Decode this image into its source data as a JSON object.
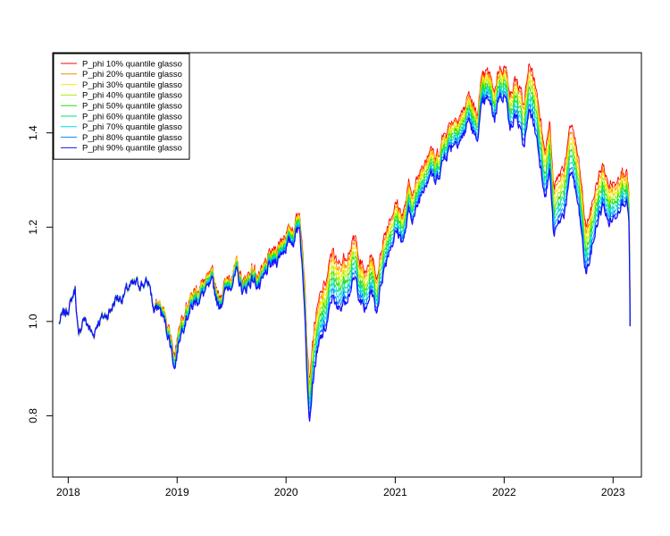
{
  "chart_data": {
    "type": "line",
    "title": "",
    "xlabel": "",
    "ylabel": "",
    "x_ticks": [
      "2018",
      "2019",
      "2020",
      "2021",
      "2022",
      "2023"
    ],
    "y_ticks": [
      "0.8",
      "1.0",
      "1.2",
      "1.4"
    ],
    "xlim": [
      "2017-11-10",
      "2023-04-06"
    ],
    "ylim": [
      0.67,
      1.57
    ],
    "legend_position": "top-left",
    "base_path": [
      [
        "2017-12-01",
        0.995
      ],
      [
        "2017-12-10",
        1.01
      ],
      [
        "2017-12-25",
        1.02
      ],
      [
        "2018-01-10",
        1.04
      ],
      [
        "2018-01-24",
        1.07
      ],
      [
        "2018-02-05",
        0.96
      ],
      [
        "2018-02-20",
        1.01
      ],
      [
        "2018-03-10",
        0.99
      ],
      [
        "2018-03-25",
        0.97
      ],
      [
        "2018-04-10",
        1.0
      ],
      [
        "2018-05-01",
        1.01
      ],
      [
        "2018-05-20",
        1.02
      ],
      [
        "2018-06-10",
        1.05
      ],
      [
        "2018-07-01",
        1.05
      ],
      [
        "2018-07-20",
        1.07
      ],
      [
        "2018-08-15",
        1.08
      ],
      [
        "2018-09-15",
        1.08
      ],
      [
        "2018-10-01",
        1.08
      ],
      [
        "2018-10-15",
        1.02
      ],
      [
        "2018-11-01",
        1.03
      ],
      [
        "2018-11-20",
        1.0
      ],
      [
        "2018-12-10",
        0.95
      ],
      [
        "2018-12-24",
        0.9
      ],
      [
        "2019-01-10",
        0.97
      ],
      [
        "2019-02-01",
        1.01
      ],
      [
        "2019-03-01",
        1.04
      ],
      [
        "2019-04-01",
        1.06
      ],
      [
        "2019-05-01",
        1.08
      ],
      [
        "2019-05-20",
        1.03
      ],
      [
        "2019-06-10",
        1.06
      ],
      [
        "2019-07-20",
        1.1
      ],
      [
        "2019-08-10",
        1.06
      ],
      [
        "2019-09-10",
        1.09
      ],
      [
        "2019-10-05",
        1.07
      ],
      [
        "2019-11-01",
        1.11
      ],
      [
        "2019-12-01",
        1.13
      ],
      [
        "2020-01-01",
        1.16
      ],
      [
        "2020-01-25",
        1.17
      ],
      [
        "2020-02-15",
        1.21
      ],
      [
        "2020-02-25",
        1.1
      ],
      [
        "2020-03-05",
        1.02
      ],
      [
        "2020-03-12",
        0.88
      ],
      [
        "2020-03-20",
        0.79
      ],
      [
        "2020-03-25",
        0.83
      ],
      [
        "2020-04-05",
        0.9
      ],
      [
        "2020-04-25",
        0.96
      ],
      [
        "2020-05-15",
        0.99
      ],
      [
        "2020-06-08",
        1.06
      ],
      [
        "2020-06-20",
        1.02
      ],
      [
        "2020-07-20",
        1.05
      ],
      [
        "2020-08-20",
        1.09
      ],
      [
        "2020-09-08",
        1.04
      ],
      [
        "2020-09-25",
        1.02
      ],
      [
        "2020-10-12",
        1.07
      ],
      [
        "2020-10-30",
        1.02
      ],
      [
        "2020-11-20",
        1.1
      ],
      [
        "2020-12-10",
        1.15
      ],
      [
        "2021-01-05",
        1.19
      ],
      [
        "2021-01-29",
        1.17
      ],
      [
        "2021-02-15",
        1.23
      ],
      [
        "2021-03-05",
        1.22
      ],
      [
        "2021-04-01",
        1.28
      ],
      [
        "2021-05-01",
        1.32
      ],
      [
        "2021-05-15",
        1.29
      ],
      [
        "2021-06-15",
        1.35
      ],
      [
        "2021-07-15",
        1.38
      ],
      [
        "2021-08-15",
        1.39
      ],
      [
        "2021-09-05",
        1.43
      ],
      [
        "2021-09-30",
        1.38
      ],
      [
        "2021-10-20",
        1.46
      ],
      [
        "2021-11-10",
        1.47
      ],
      [
        "2021-11-30",
        1.43
      ],
      [
        "2021-12-15",
        1.48
      ],
      [
        "2022-01-03",
        1.48
      ],
      [
        "2022-01-25",
        1.41
      ],
      [
        "2022-02-10",
        1.44
      ],
      [
        "2022-03-07",
        1.37
      ],
      [
        "2022-03-29",
        1.45
      ],
      [
        "2022-04-20",
        1.39
      ],
      [
        "2022-05-10",
        1.3
      ],
      [
        "2022-05-20",
        1.27
      ],
      [
        "2022-06-03",
        1.32
      ],
      [
        "2022-06-16",
        1.18
      ],
      [
        "2022-07-05",
        1.21
      ],
      [
        "2022-07-20",
        1.23
      ],
      [
        "2022-08-16",
        1.32
      ],
      [
        "2022-09-05",
        1.25
      ],
      [
        "2022-09-15",
        1.2
      ],
      [
        "2022-10-01",
        1.1
      ],
      [
        "2022-10-15",
        1.13
      ],
      [
        "2022-11-05",
        1.2
      ],
      [
        "2022-11-30",
        1.25
      ],
      [
        "2022-12-15",
        1.21
      ],
      [
        "2023-01-05",
        1.22
      ],
      [
        "2023-01-25",
        1.25
      ],
      [
        "2023-02-10",
        1.26
      ],
      [
        "2023-02-20",
        1.24
      ],
      [
        "2023-02-24",
        1.2
      ],
      [
        "2023-02-27",
        0.99
      ]
    ],
    "series": [
      {
        "name": "P_phi 10% quantile glasso",
        "color": "#FF0000"
      },
      {
        "name": "P_phi 20% quantile glasso",
        "color": "#FF8C00"
      },
      {
        "name": "P_phi 30% quantile glasso",
        "color": "#FFE800"
      },
      {
        "name": "P_phi 40% quantile glasso",
        "color": "#A8F000"
      },
      {
        "name": "P_phi 50% quantile glasso",
        "color": "#2EE000"
      },
      {
        "name": "P_phi 60% quantile glasso",
        "color": "#00E086"
      },
      {
        "name": "P_phi 70% quantile glasso",
        "color": "#00D8E0"
      },
      {
        "name": "P_phi 80% quantile glasso",
        "color": "#0080FF"
      },
      {
        "name": "P_phi 90% quantile glasso",
        "color": "#1A10FF"
      }
    ],
    "series_spread": [
      [
        "2017-12-01",
        0.0
      ],
      [
        "2018-10-01",
        0.0
      ],
      [
        "2018-12-24",
        0.03
      ],
      [
        "2019-06-01",
        0.02
      ],
      [
        "2020-02-15",
        0.03
      ],
      [
        "2020-03-20",
        0.09
      ],
      [
        "2020-06-01",
        0.1
      ],
      [
        "2021-01-01",
        0.06
      ],
      [
        "2021-06-01",
        0.05
      ],
      [
        "2022-01-01",
        0.06
      ],
      [
        "2022-04-01",
        0.1
      ],
      [
        "2022-10-01",
        0.1
      ],
      [
        "2023-02-24",
        0.06
      ]
    ]
  }
}
